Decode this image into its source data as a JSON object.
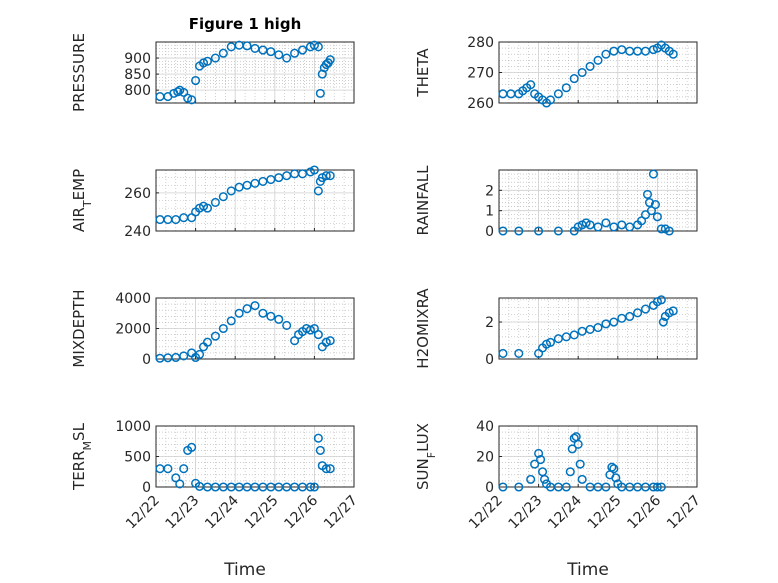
{
  "figure": {
    "title": "Figure 1 high"
  },
  "colors": {
    "marker": "#0072BD",
    "axis": "#262626",
    "grid": "#b0b0b0"
  },
  "chart_data": [
    {
      "type": "scatter",
      "ylabel": "PRESSURE",
      "ylim": [
        760,
        950
      ],
      "yticks": [
        800,
        850,
        900
      ],
      "grid": true,
      "xlim": [
        0,
        5
      ],
      "x": [
        0.1,
        0.3,
        0.45,
        0.55,
        0.6,
        0.7,
        0.8,
        0.9,
        1.0,
        1.1,
        1.2,
        1.3,
        1.5,
        1.7,
        1.9,
        2.1,
        2.3,
        2.5,
        2.7,
        2.9,
        3.1,
        3.3,
        3.5,
        3.7,
        3.9,
        4.0,
        4.1,
        4.15,
        4.2,
        4.25,
        4.3,
        4.35,
        4.4
      ],
      "y": [
        780,
        780,
        790,
        795,
        800,
        793,
        775,
        770,
        830,
        875,
        885,
        890,
        900,
        915,
        935,
        940,
        938,
        930,
        925,
        920,
        910,
        900,
        915,
        925,
        935,
        940,
        935,
        790,
        850,
        870,
        880,
        885,
        895
      ]
    },
    {
      "type": "scatter",
      "ylabel": "THETA",
      "ylim": [
        260,
        280
      ],
      "yticks": [
        260,
        270,
        280
      ],
      "grid": true,
      "xlim": [
        0,
        5
      ],
      "x": [
        0.1,
        0.3,
        0.5,
        0.6,
        0.7,
        0.8,
        0.9,
        1.0,
        1.1,
        1.2,
        1.3,
        1.5,
        1.7,
        1.9,
        2.1,
        2.3,
        2.5,
        2.7,
        2.9,
        3.1,
        3.3,
        3.5,
        3.7,
        3.9,
        4.0,
        4.1,
        4.2,
        4.3,
        4.4
      ],
      "y": [
        263,
        263,
        263,
        264,
        265,
        266,
        263,
        262,
        261,
        260,
        261,
        263,
        265,
        268,
        270,
        272,
        274,
        276,
        277,
        277.5,
        277,
        277,
        277,
        277.5,
        278,
        279,
        278,
        277,
        276
      ]
    },
    {
      "type": "scatter",
      "ylabel": "AIR_TEMP",
      "ylim": [
        240,
        272
      ],
      "yticks": [
        240,
        260
      ],
      "grid": true,
      "xlim": [
        0,
        5
      ],
      "x": [
        0.1,
        0.3,
        0.5,
        0.7,
        0.9,
        1.0,
        1.1,
        1.2,
        1.3,
        1.5,
        1.7,
        1.9,
        2.1,
        2.3,
        2.5,
        2.7,
        2.9,
        3.1,
        3.3,
        3.5,
        3.7,
        3.9,
        4.0,
        4.1,
        4.15,
        4.2,
        4.3,
        4.4
      ],
      "y": [
        246,
        246,
        246,
        247,
        247,
        250,
        252,
        253,
        252,
        255,
        258,
        261,
        263,
        264,
        265,
        266,
        267,
        268,
        269,
        270,
        270,
        271,
        272,
        261,
        266,
        268,
        269,
        269
      ]
    },
    {
      "type": "scatter",
      "ylabel": "RAINFALL",
      "ylim": [
        0,
        3
      ],
      "yticks": [
        0,
        1,
        2
      ],
      "grid": true,
      "xlim": [
        0,
        5
      ],
      "x": [
        0.1,
        0.5,
        1.0,
        1.5,
        1.9,
        2.0,
        2.1,
        2.2,
        2.3,
        2.5,
        2.7,
        2.9,
        3.1,
        3.3,
        3.5,
        3.6,
        3.7,
        3.75,
        3.8,
        3.85,
        3.9,
        3.95,
        4.0,
        4.1,
        4.2,
        4.3
      ],
      "y": [
        0,
        0,
        0,
        0,
        0,
        0.2,
        0.3,
        0.4,
        0.3,
        0.2,
        0.4,
        0.2,
        0.3,
        0.2,
        0.3,
        0.5,
        0.8,
        1.8,
        1.4,
        1.0,
        2.8,
        1.3,
        0.7,
        0.1,
        0.1,
        0.0
      ]
    },
    {
      "type": "scatter",
      "ylabel": "MIXDEPTH",
      "ylim": [
        0,
        4000
      ],
      "yticks": [
        0,
        2000,
        4000
      ],
      "grid": true,
      "xlim": [
        0,
        5
      ],
      "x": [
        0.1,
        0.3,
        0.5,
        0.7,
        0.9,
        1.0,
        1.1,
        1.2,
        1.3,
        1.5,
        1.7,
        1.9,
        2.1,
        2.3,
        2.5,
        2.7,
        2.9,
        3.1,
        3.3,
        3.5,
        3.6,
        3.7,
        3.8,
        3.9,
        4.0,
        4.1,
        4.2,
        4.3,
        4.4
      ],
      "y": [
        50,
        80,
        100,
        200,
        400,
        100,
        300,
        800,
        1100,
        1500,
        2000,
        2500,
        3000,
        3300,
        3500,
        3000,
        2800,
        2600,
        2200,
        1200,
        1600,
        1800,
        2000,
        1900,
        2000,
        1600,
        800,
        1100,
        1200
      ]
    },
    {
      "type": "scatter",
      "ylabel": "H2OMIXRA",
      "ylim": [
        0,
        3.3
      ],
      "yticks": [
        0,
        2
      ],
      "grid": true,
      "xlim": [
        0,
        5
      ],
      "x": [
        0.1,
        0.5,
        1.0,
        1.1,
        1.2,
        1.3,
        1.5,
        1.7,
        1.9,
        2.1,
        2.3,
        2.5,
        2.7,
        2.9,
        3.1,
        3.3,
        3.5,
        3.7,
        3.9,
        4.0,
        4.1,
        4.15,
        4.2,
        4.3,
        4.4
      ],
      "y": [
        0.3,
        0.3,
        0.3,
        0.6,
        0.8,
        0.9,
        1.1,
        1.2,
        1.3,
        1.5,
        1.6,
        1.7,
        1.9,
        2.0,
        2.2,
        2.3,
        2.5,
        2.7,
        2.9,
        3.1,
        3.2,
        2.0,
        2.3,
        2.5,
        2.6
      ]
    },
    {
      "type": "scatter",
      "ylabel": "TERR_MSL",
      "ylim": [
        0,
        1000
      ],
      "yticks": [
        0,
        500,
        1000
      ],
      "grid": true,
      "xlim": [
        0,
        5
      ],
      "x": [
        0.1,
        0.3,
        0.5,
        0.6,
        0.7,
        0.8,
        0.9,
        1.0,
        1.1,
        1.3,
        1.5,
        1.7,
        1.9,
        2.1,
        2.3,
        2.5,
        2.7,
        2.9,
        3.1,
        3.3,
        3.5,
        3.7,
        3.9,
        4.0,
        4.1,
        4.15,
        4.2,
        4.3,
        4.4
      ],
      "y": [
        300,
        300,
        150,
        50,
        300,
        600,
        650,
        60,
        10,
        0,
        0,
        0,
        0,
        0,
        0,
        0,
        0,
        0,
        0,
        0,
        0,
        0,
        0,
        0,
        800,
        600,
        350,
        300,
        300
      ]
    },
    {
      "type": "scatter",
      "ylabel": "SUN_FLUX",
      "ylim": [
        0,
        40
      ],
      "yticks": [
        0,
        20,
        40
      ],
      "grid": true,
      "xlim": [
        0,
        5
      ],
      "x": [
        0.1,
        0.5,
        0.8,
        0.9,
        1.0,
        1.05,
        1.1,
        1.15,
        1.2,
        1.3,
        1.5,
        1.7,
        1.8,
        1.85,
        1.9,
        1.95,
        2.0,
        2.05,
        2.1,
        2.3,
        2.5,
        2.7,
        2.8,
        2.85,
        2.9,
        2.95,
        3.0,
        3.1,
        3.3,
        3.5,
        3.7,
        3.9,
        4.0,
        4.1
      ],
      "y": [
        0,
        0,
        5,
        15,
        22,
        18,
        10,
        5,
        2,
        0,
        0,
        0,
        10,
        25,
        32,
        33,
        28,
        15,
        5,
        0,
        0,
        0,
        8,
        13,
        12,
        6,
        2,
        0,
        0,
        0,
        0,
        0,
        0,
        0
      ]
    }
  ],
  "xaxis": {
    "ticks": [
      "12/22",
      "12/23",
      "12/24",
      "12/25",
      "12/26",
      "12/27"
    ],
    "label": "Time"
  }
}
